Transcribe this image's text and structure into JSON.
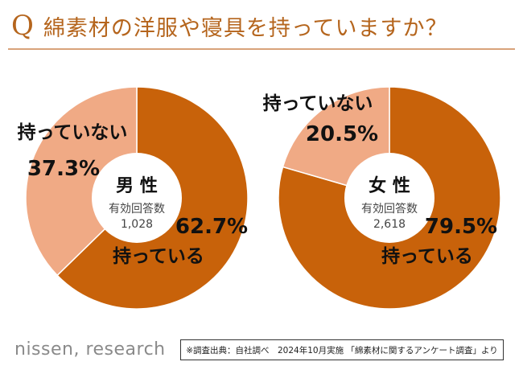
{
  "header": {
    "q_mark": "Q",
    "title": "綿素材の洋服や寝具を持っていますか？"
  },
  "colors": {
    "title": "#b5651d",
    "own": "#c8620a",
    "not_own": "#f0aa85",
    "center": "#ffffff"
  },
  "chart_data": [
    {
      "type": "pie",
      "center_title": "男 性",
      "sample_label": "有効回答数",
      "sample_size": "1,028",
      "slices": [
        {
          "label": "持っている",
          "value": 62.7,
          "value_label": "62.7%"
        },
        {
          "label": "持っていない",
          "value": 37.3,
          "value_label": "37.3%"
        }
      ]
    },
    {
      "type": "pie",
      "center_title": "女 性",
      "sample_label": "有効回答数",
      "sample_size": "2,618",
      "slices": [
        {
          "label": "持っている",
          "value": 79.5,
          "value_label": "79.5%"
        },
        {
          "label": "持っていない",
          "value": 20.5,
          "value_label": "20.5%"
        }
      ]
    }
  ],
  "footer": {
    "logo": "nissen, research",
    "source": "※調査出典：自社調べ　2024年10月実施 「綿素材に関するアンケート調査」より"
  }
}
